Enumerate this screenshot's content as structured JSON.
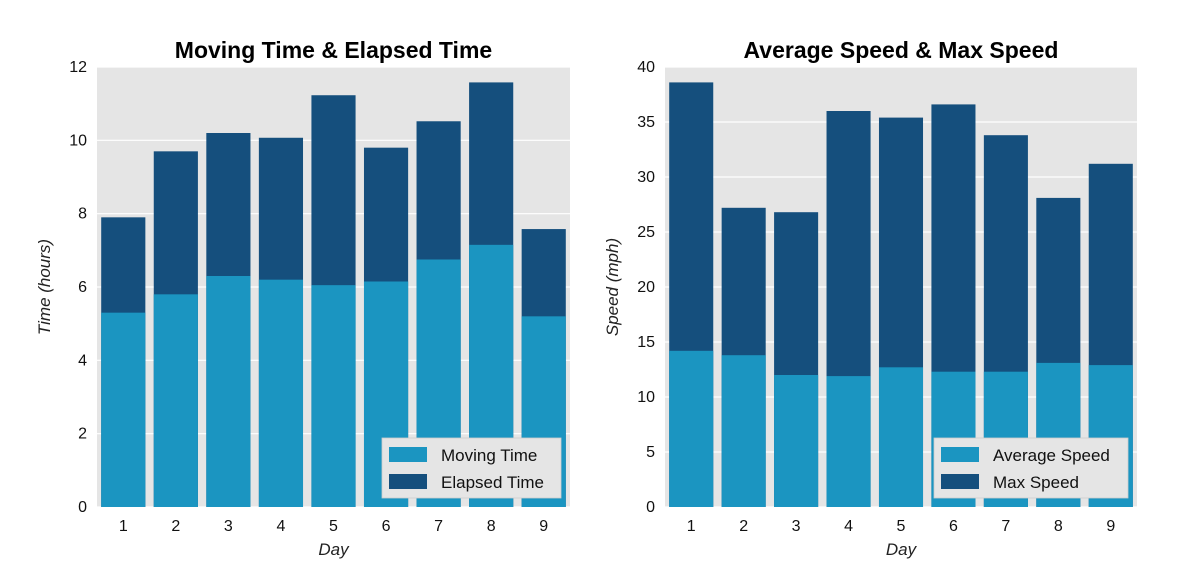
{
  "colors": {
    "panel_bg": "#e5e5e5",
    "grid": "#ffffff",
    "light_bar": "#1b95c1",
    "dark_bar": "#154f7d"
  },
  "chart_data": [
    {
      "type": "bar",
      "stacking": "overlay",
      "title": "Moving Time & Elapsed Time",
      "xlabel": "Day",
      "ylabel": "Time (hours)",
      "ylim": [
        0,
        12
      ],
      "yticks": [
        0,
        2,
        4,
        6,
        8,
        10,
        12
      ],
      "categories": [
        "1",
        "2",
        "3",
        "4",
        "5",
        "6",
        "7",
        "8",
        "9"
      ],
      "grid": true,
      "legend_position": "bottom-right",
      "series": [
        {
          "name": "Moving Time",
          "color": "#1b95c1",
          "values": [
            5.3,
            5.8,
            6.3,
            6.2,
            6.05,
            6.15,
            6.75,
            7.15,
            5.2
          ]
        },
        {
          "name": "Elapsed Time",
          "color": "#154f7d",
          "values": [
            7.9,
            9.7,
            10.2,
            10.07,
            11.23,
            9.8,
            10.52,
            11.58,
            7.58
          ]
        }
      ]
    },
    {
      "type": "bar",
      "stacking": "overlay",
      "title": "Average Speed & Max Speed",
      "xlabel": "Day",
      "ylabel": "Speed (mph)",
      "ylim": [
        0,
        40
      ],
      "yticks": [
        0,
        5,
        10,
        15,
        20,
        25,
        30,
        35,
        40
      ],
      "categories": [
        "1",
        "2",
        "3",
        "4",
        "5",
        "6",
        "7",
        "8",
        "9"
      ],
      "grid": true,
      "legend_position": "bottom-right",
      "series": [
        {
          "name": "Average Speed",
          "color": "#1b95c1",
          "values": [
            14.2,
            13.8,
            12.0,
            11.9,
            12.7,
            12.3,
            12.3,
            13.1,
            12.9
          ]
        },
        {
          "name": "Max Speed",
          "color": "#154f7d",
          "values": [
            38.6,
            27.2,
            26.8,
            36.0,
            35.4,
            36.6,
            33.8,
            28.1,
            31.2
          ]
        }
      ]
    }
  ]
}
